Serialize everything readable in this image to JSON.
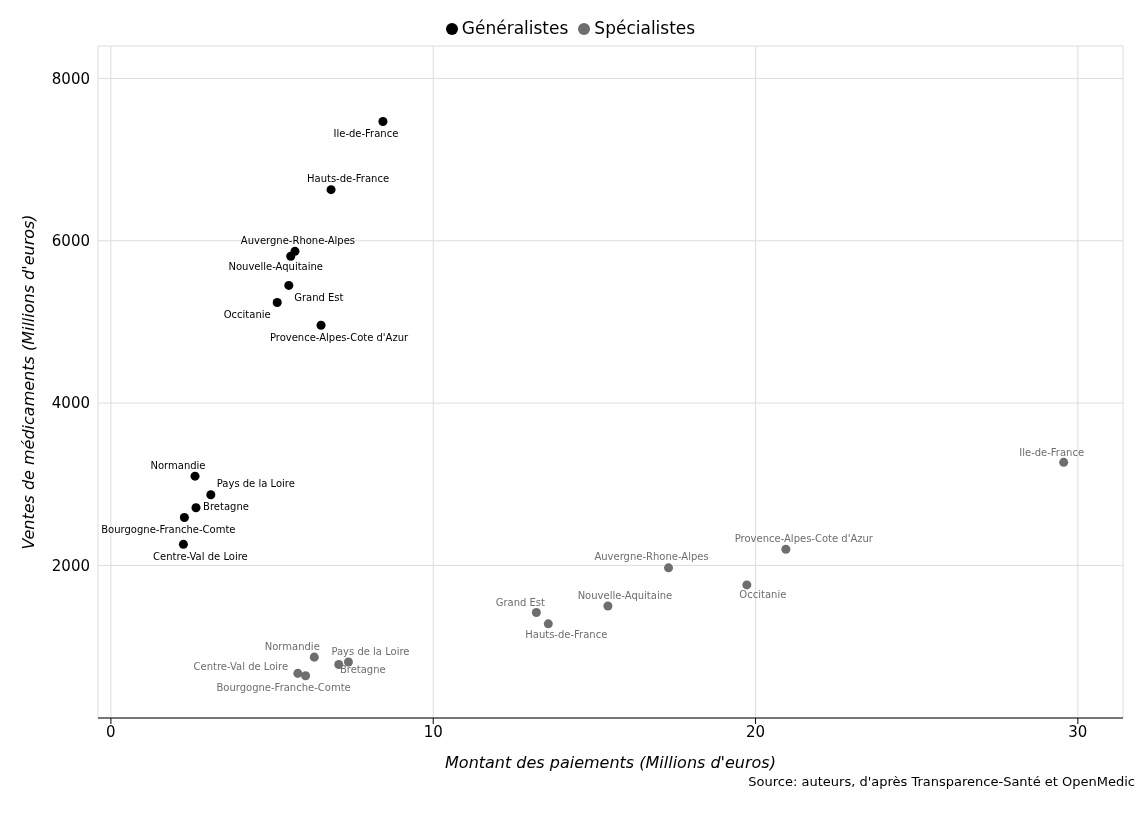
{
  "chart_data": {
    "type": "scatter",
    "xlabel": "Montant des paiements (Millions d'euros)",
    "ylabel": "Ventes de médicaments (Millions d'euros)",
    "xlim": [
      -0.4,
      31.4
    ],
    "xticks": [
      0,
      10,
      20,
      30
    ],
    "ylim": [
      120,
      8400
    ],
    "yticks": [
      2000,
      4000,
      6000,
      8000
    ],
    "grid": true,
    "legend": "top",
    "marker": "circle",
    "series": [
      {
        "name": "Généralistes",
        "color": "#000000",
        "x": [
          8.44,
          6.83,
          5.71,
          5.58,
          5.52,
          5.16,
          6.52,
          2.61,
          3.1,
          2.64,
          2.28,
          2.25
        ],
        "values": [
          7470,
          6630,
          5870,
          5810,
          5450,
          5240,
          4960,
          3100,
          2870,
          2710,
          2590,
          2260
        ],
        "value_labels": [
          "Ile-de-France",
          "Hauts-de-France",
          "Auvergne-Rhone-Alpes",
          "Nouvelle-Aquitaine",
          "Grand Est",
          "Occitanie",
          "Provence-Alpes-Cote d'Azur",
          "Normandie",
          "Pays de la Loire",
          "Bretagne",
          "Bourgogne-Franche-Comte",
          "Centre-Val de Loire"
        ]
      },
      {
        "name": "Spécialistes",
        "color": "#6e6e6e",
        "x": [
          29.56,
          20.94,
          17.3,
          19.73,
          15.42,
          13.2,
          13.57,
          6.31,
          7.37,
          7.07,
          5.8,
          6.04
        ],
        "values": [
          3270,
          2200,
          1970,
          1760,
          1500,
          1420,
          1280,
          870,
          810,
          780,
          670,
          640
        ],
        "value_labels": [
          "Ile-de-France",
          "Provence-Alpes-Cote d'Azur",
          "Auvergne-Rhone-Alpes",
          "Occitanie",
          "Nouvelle-Aquitaine",
          "Grand Est",
          "Hauts-de-France",
          "Normandie",
          "Pays de la Loire",
          "Bretagne",
          "Centre-Val de Loire",
          "Bourgogne-Franche-Comte"
        ]
      }
    ],
    "annotations": [
      "Source: auteurs, d'après Transparence-Santé et OpenMedic"
    ]
  }
}
